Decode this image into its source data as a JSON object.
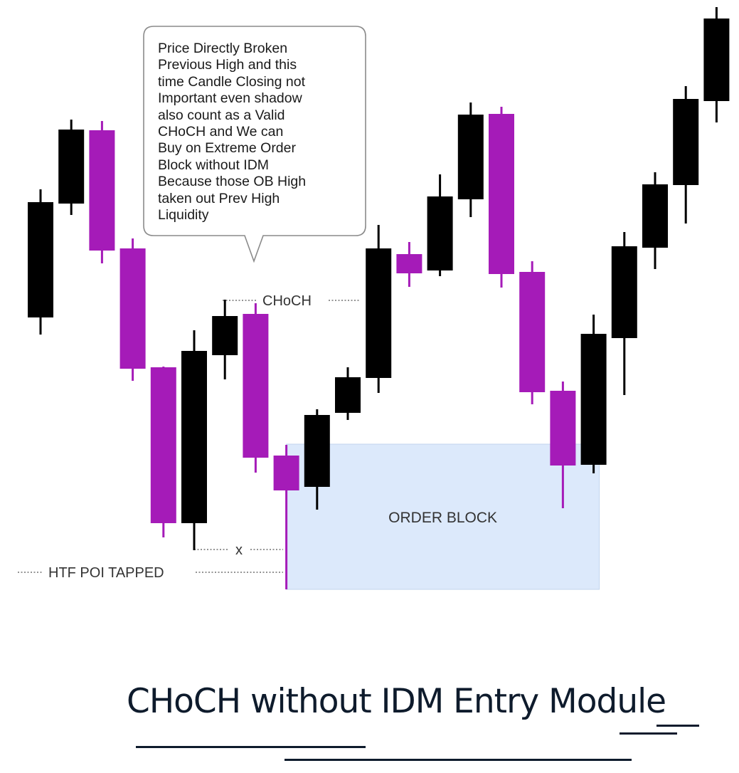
{
  "callout": {
    "text": "Price Directly Broken\nPrevious High and this\ntime Candle Closing not\nImportant even shadow\nalso count as a Valid\nCHoCH  and We can\nBuy on Extreme Order\nBlock without IDM\nBecause those OB High\ntaken out Prev High\nLiquidity"
  },
  "labels": {
    "choch": "CHoCH",
    "x": "x",
    "htf_poi": "HTF  POI  TAPPED",
    "order_block": "ORDER  BLOCK"
  },
  "title": "CHoCH without IDM  Entry Module",
  "colors": {
    "bearish": "#a51bb8",
    "bullish": "#000000",
    "order_block_fill": "#dce9fb",
    "order_block_edge": "#c2d4ee",
    "title": "#0e1b2c"
  },
  "chart_data": {
    "type": "candlestick",
    "axis_labels": "none",
    "grid": false,
    "candles_note": "price in chart's own vertical units (higher = higher price)",
    "candles": [
      {
        "dir": "bull",
        "open": 640,
        "close": 802,
        "high": 820,
        "low": 616
      },
      {
        "dir": "bull",
        "open": 800,
        "close": 904,
        "high": 918,
        "low": 784
      },
      {
        "dir": "bear",
        "open": 903,
        "close": 734,
        "high": 916,
        "low": 716
      },
      {
        "dir": "bear",
        "open": 737,
        "close": 568,
        "high": 751,
        "low": 551
      },
      {
        "dir": "bear",
        "open": 570,
        "close": 351,
        "high": 571,
        "low": 331
      },
      {
        "dir": "bull",
        "open": 351,
        "close": 593,
        "high": 622,
        "low": 313
      },
      {
        "dir": "bull",
        "open": 587,
        "close": 642,
        "high": 665,
        "low": 553
      },
      {
        "dir": "bear",
        "open": 645,
        "close": 443,
        "high": 660,
        "low": 422
      },
      {
        "dir": "bear",
        "open": 446,
        "close": 397,
        "high": 461,
        "low": 258
      },
      {
        "dir": "bull",
        "open": 402,
        "close": 503,
        "high": 511,
        "low": 370
      },
      {
        "dir": "bull",
        "open": 506,
        "close": 556,
        "high": 570,
        "low": 496
      },
      {
        "dir": "bull",
        "open": 555,
        "close": 737,
        "high": 770,
        "low": 534
      },
      {
        "dir": "bear",
        "open": 729,
        "close": 702,
        "high": 746,
        "low": 683
      },
      {
        "dir": "bull",
        "open": 706,
        "close": 810,
        "high": 841,
        "low": 698
      },
      {
        "dir": "bull",
        "open": 806,
        "close": 925,
        "high": 942,
        "low": 781
      },
      {
        "dir": "bear",
        "open": 926,
        "close": 701,
        "high": 936,
        "low": 682
      },
      {
        "dir": "bear",
        "open": 704,
        "close": 535,
        "high": 719,
        "low": 518
      },
      {
        "dir": "bear",
        "open": 537,
        "close": 432,
        "high": 550,
        "low": 372
      },
      {
        "dir": "bull",
        "open": 433,
        "close": 617,
        "high": 644,
        "low": 421
      },
      {
        "dir": "bull",
        "open": 611,
        "close": 740,
        "high": 760,
        "low": 531
      },
      {
        "dir": "bull",
        "open": 738,
        "close": 827,
        "high": 844,
        "low": 708
      },
      {
        "dir": "bull",
        "open": 826,
        "close": 947,
        "high": 965,
        "low": 772
      },
      {
        "dir": "bull",
        "open": 944,
        "close": 1060,
        "high": 1076,
        "low": 914
      }
    ],
    "order_block": {
      "top": 462,
      "bottom": 258,
      "from_candle": 8,
      "to_candle": 18
    },
    "choch_level": 664,
    "x_level": 314,
    "htf_poi_level": 282
  }
}
